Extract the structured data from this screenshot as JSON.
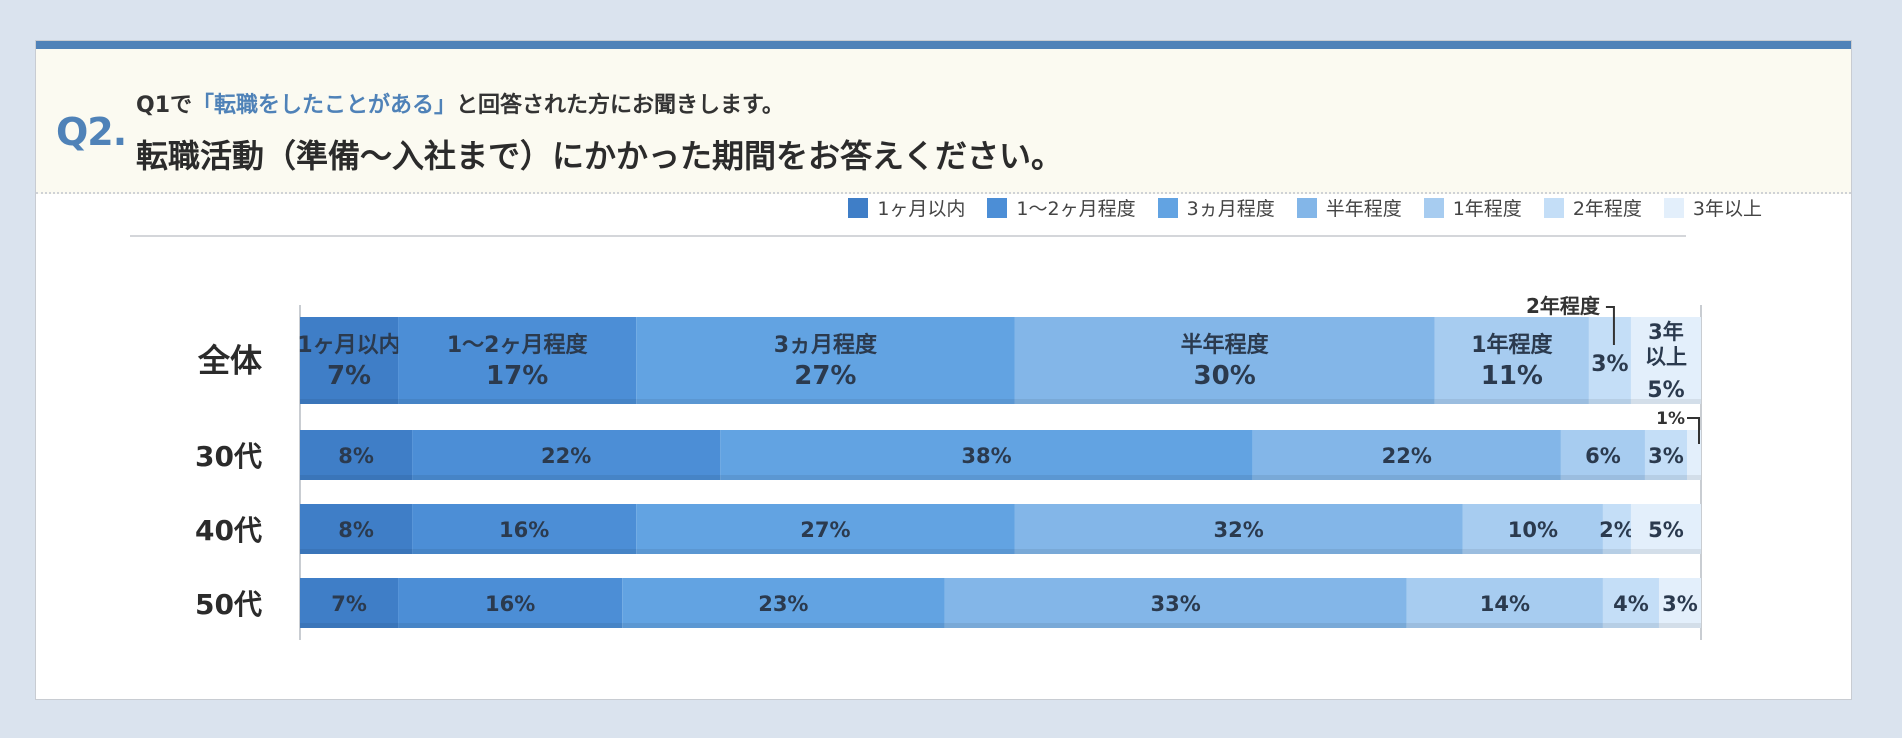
{
  "question": {
    "number": "Q2.",
    "sub_prefix": "Q1で",
    "sub_highlight": "「転職をしたことがある」",
    "sub_suffix": "と回答された方にお聞きします。",
    "main": "転職活動（準備〜入社まで）にかかった期間をお答えください。"
  },
  "colors": {
    "accent": "#4f82b8",
    "series": [
      "#3f7ec7",
      "#4c8ed6",
      "#62a3e2",
      "#83b6e8",
      "#a7ccf0",
      "#c4def7",
      "#e3effb"
    ]
  },
  "chart_data": {
    "type": "bar",
    "orientation": "horizontal",
    "stacked": true,
    "unit": "%",
    "categories": [
      "全体",
      "30代",
      "40代",
      "50代"
    ],
    "legend_position": "top-right",
    "series": [
      {
        "name": "1ヶ月以内",
        "values": [
          7,
          8,
          8,
          7
        ]
      },
      {
        "name": "1〜2ヶ月程度",
        "values": [
          17,
          22,
          16,
          16
        ]
      },
      {
        "name": "3ヵ月程度",
        "values": [
          27,
          38,
          27,
          23
        ]
      },
      {
        "name": "半年程度",
        "values": [
          30,
          22,
          32,
          33
        ]
      },
      {
        "name": "1年程度",
        "values": [
          11,
          6,
          10,
          14
        ]
      },
      {
        "name": "2年程度",
        "values": [
          3,
          3,
          2,
          4
        ]
      },
      {
        "name": "3年以上",
        "values": [
          5,
          1,
          5,
          3
        ]
      }
    ],
    "overall_inline_labels": [
      "1ヶ月以内",
      "1〜2ヶ月程度",
      "3ヵ月程度",
      "半年程度",
      "1年程度",
      "",
      "3年\n以上"
    ],
    "callout_label": "2年程度"
  }
}
